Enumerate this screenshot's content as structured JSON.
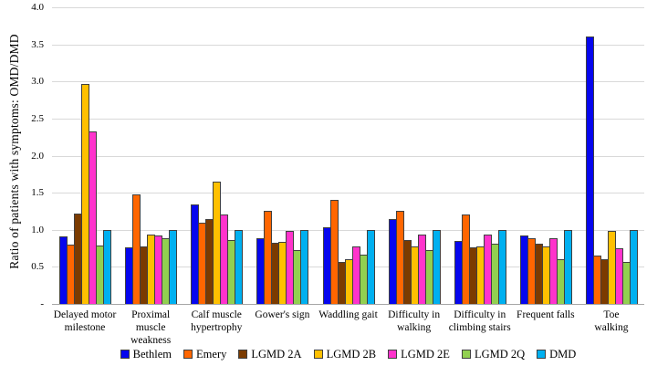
{
  "chart_data": {
    "type": "bar",
    "title": "",
    "ylabel": "Ratio of patients with symptoms: OMD/DMD",
    "xlabel": "",
    "ylim": [
      0,
      4.0
    ],
    "ytick_labels": [
      "4.0",
      "3.5",
      "3.0",
      "2.5",
      "2.0",
      "1.5",
      "1.0",
      "0.5",
      "-"
    ],
    "ytick_values": [
      4.0,
      3.5,
      3.0,
      2.5,
      2.0,
      1.5,
      1.0,
      0.5,
      0
    ],
    "grid": "horizontal",
    "legend_position": "bottom",
    "categories": [
      "Delayed motor\nmilestone",
      "Proximal\nmuscle\nweakness",
      "Calf muscle\nhypertrophy",
      "Gower's sign",
      "Waddling gait",
      "Difficulty in\nwalking",
      "Difficulty in\nclimbing stairs",
      "Frequent falls",
      "Toe walking"
    ],
    "series": [
      {
        "name": "Bethlem",
        "color": "#0606ee",
        "values": [
          0.91,
          0.76,
          1.34,
          0.89,
          1.03,
          1.14,
          0.85,
          0.92,
          3.61
        ]
      },
      {
        "name": "Emery",
        "color": "#ff6600",
        "values": [
          0.8,
          1.48,
          1.1,
          1.26,
          1.4,
          1.25,
          1.2,
          0.89,
          0.65
        ]
      },
      {
        "name": "LGMD 2A",
        "color": "#7b3b00",
        "values": [
          1.22,
          0.77,
          1.15,
          0.82,
          0.57,
          0.86,
          0.76,
          0.81,
          0.6
        ]
      },
      {
        "name": "LGMD 2B",
        "color": "#ffc000",
        "values": [
          2.97,
          0.93,
          1.65,
          0.84,
          0.6,
          0.78,
          0.78,
          0.77,
          0.98
        ]
      },
      {
        "name": "LGMD 2E",
        "color": "#ff33cc",
        "values": [
          2.32,
          0.92,
          1.21,
          0.98,
          0.77,
          0.93,
          0.94,
          0.88,
          0.75
        ]
      },
      {
        "name": "LGMD 2Q",
        "color": "#92d050",
        "values": [
          0.79,
          0.88,
          0.86,
          0.73,
          0.66,
          0.73,
          0.81,
          0.6,
          0.57
        ]
      },
      {
        "name": "DMD",
        "color": "#00b0f0",
        "values": [
          1.0,
          1.0,
          1.0,
          1.0,
          1.0,
          1.0,
          1.0,
          1.0,
          1.0
        ]
      }
    ],
    "colors": {
      "gridline": "#d9d9d9",
      "axis_line": "#a6a6a6",
      "bar_outline": "#404040"
    }
  }
}
